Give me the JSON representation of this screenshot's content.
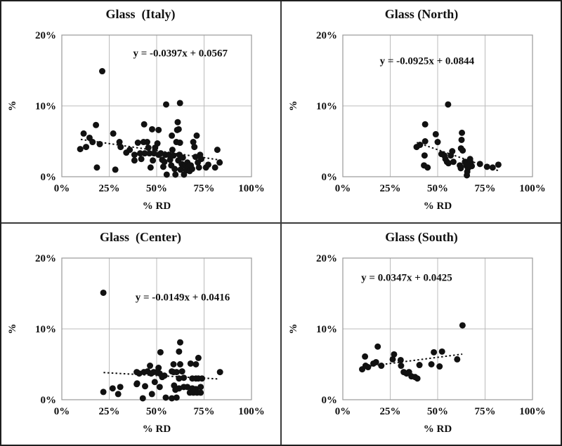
{
  "figure": {
    "background": "#ffffff",
    "border_color": "#1f1f1f",
    "divider_color": "#3a3a3a",
    "grid_color": "#bbbbbb",
    "plot_border_color": "#999999",
    "point_color": "#111111",
    "trend_color": "#111111"
  },
  "axes": {
    "x_label": "% RD",
    "y_label": "%",
    "x_ticks": [
      "0%",
      "25%",
      "50%",
      "75%",
      "100%"
    ],
    "x_tick_values": [
      0,
      25,
      50,
      75,
      100
    ],
    "y_ticks": [
      "0%",
      "10%",
      "20%"
    ],
    "y_tick_values": [
      0,
      10,
      20
    ],
    "x_range": [
      0,
      100
    ],
    "y_range": [
      0,
      20
    ],
    "grid": true
  },
  "chart_data": [
    {
      "type": "scatter",
      "title": "Glass  (Italy)",
      "equation": "y = -0.0397x + 0.0567",
      "equation_pos": [
        62.5,
        17.0
      ],
      "trend": {
        "slope": -0.0397,
        "intercept": 5.67,
        "x_start": 10,
        "x_end": 84
      },
      "points": [
        [
          21.3,
          14.9
        ],
        [
          55,
          10.2
        ],
        [
          62.3,
          10.4
        ],
        [
          18,
          7.3
        ],
        [
          43.4,
          7.4
        ],
        [
          47.6,
          6.7
        ],
        [
          51,
          6.6
        ],
        [
          61.1,
          7.7
        ],
        [
          61.6,
          6.7
        ],
        [
          11.5,
          6.1
        ],
        [
          14.6,
          5.5
        ],
        [
          27.1,
          6.1
        ],
        [
          16.2,
          4.9
        ],
        [
          12.8,
          4.2
        ],
        [
          9.7,
          3.9
        ],
        [
          20,
          4.6
        ],
        [
          30.4,
          4.9
        ],
        [
          31,
          4.2
        ],
        [
          34,
          3.4
        ],
        [
          35.8,
          3.8
        ],
        [
          38.3,
          3.1
        ],
        [
          38.3,
          2.3
        ],
        [
          40.1,
          4.8
        ],
        [
          41.3,
          3.3
        ],
        [
          41.9,
          2.5
        ],
        [
          43.1,
          4.9
        ],
        [
          43.7,
          3.3
        ],
        [
          45,
          4.9
        ],
        [
          45.6,
          4.1
        ],
        [
          46.2,
          3.3
        ],
        [
          46.8,
          1.3
        ],
        [
          48,
          2.3
        ],
        [
          48.6,
          3.3
        ],
        [
          49.2,
          4.1
        ],
        [
          50.4,
          4.7
        ],
        [
          51,
          3.1
        ],
        [
          52.2,
          3.3
        ],
        [
          52.9,
          2.4
        ],
        [
          53.5,
          1.4
        ],
        [
          54.1,
          2.1
        ],
        [
          54.7,
          3.1
        ],
        [
          55.3,
          0.3
        ],
        [
          56.5,
          3.1
        ],
        [
          57.1,
          2.4
        ],
        [
          57.7,
          1.6
        ],
        [
          58,
          5.8
        ],
        [
          58.3,
          3.8
        ],
        [
          58.9,
          3.0
        ],
        [
          59.5,
          1.1
        ],
        [
          59.9,
          0.3
        ],
        [
          60.4,
          4.9
        ],
        [
          60.8,
          6.6
        ],
        [
          61.4,
          2.3
        ],
        [
          62,
          3.1
        ],
        [
          62.3,
          4.8
        ],
        [
          62.6,
          1.0
        ],
        [
          63.2,
          1.8
        ],
        [
          63.8,
          2.7
        ],
        [
          64.4,
          0.3
        ],
        [
          65,
          1.5
        ],
        [
          65.6,
          0.9
        ],
        [
          66.2,
          2.0
        ],
        [
          66.8,
          1.4
        ],
        [
          67.4,
          0.8
        ],
        [
          68,
          1.6
        ],
        [
          68.7,
          1.1
        ],
        [
          69.3,
          4.9
        ],
        [
          69.9,
          4.2
        ],
        [
          70.5,
          2.8
        ],
        [
          71.1,
          5.8
        ],
        [
          71.7,
          2.0
        ],
        [
          72.3,
          1.3
        ],
        [
          72.9,
          3.1
        ],
        [
          73.5,
          2.5
        ],
        [
          76,
          1.3
        ],
        [
          77.2,
          1.7
        ],
        [
          80.8,
          1.3
        ],
        [
          82,
          3.8
        ],
        [
          83.2,
          2.0
        ],
        [
          18.5,
          1.3
        ],
        [
          28.2,
          1.0
        ]
      ]
    },
    {
      "type": "scatter",
      "title": "Glass (North)",
      "equation": "y = -0.0925x + 0.0844",
      "equation_pos": [
        44.4,
        15.9
      ],
      "trend": {
        "slope": -0.0925,
        "intercept": 8.44,
        "x_start": 39,
        "x_end": 82
      },
      "points": [
        [
          55.5,
          10.2
        ],
        [
          43.4,
          7.4
        ],
        [
          49,
          6.0
        ],
        [
          43.4,
          5.0
        ],
        [
          50,
          4.9
        ],
        [
          38.9,
          4.2
        ],
        [
          40.7,
          4.5
        ],
        [
          43.1,
          3.0
        ],
        [
          52,
          3.2
        ],
        [
          53.5,
          3.0
        ],
        [
          54.1,
          2.5
        ],
        [
          54.9,
          2.1
        ],
        [
          55.7,
          1.9
        ],
        [
          56.9,
          3.0
        ],
        [
          57.7,
          3.6
        ],
        [
          58.3,
          2.1
        ],
        [
          62.3,
          4.0
        ],
        [
          62.8,
          6.2
        ],
        [
          62.6,
          5.2
        ],
        [
          63.2,
          3.7
        ],
        [
          61.7,
          1.6
        ],
        [
          62.2,
          1.2
        ],
        [
          64.4,
          2.1
        ],
        [
          65,
          1.6
        ],
        [
          65.4,
          0.2
        ],
        [
          65.6,
          0.7
        ],
        [
          66,
          1.2
        ],
        [
          66.5,
          1.7
        ],
        [
          67.1,
          2.5
        ],
        [
          67.4,
          2.0
        ],
        [
          68,
          1.5
        ],
        [
          42.8,
          1.6
        ],
        [
          44.7,
          1.3
        ],
        [
          72.3,
          1.8
        ],
        [
          76,
          1.4
        ],
        [
          79,
          1.3
        ],
        [
          82,
          1.7
        ]
      ]
    },
    {
      "type": "scatter",
      "title": "Glass  (Center)",
      "equation": "y = -0.0149x + 0.0416",
      "equation_pos": [
        63.7,
        14.0
      ],
      "trend": {
        "slope": -0.0149,
        "intercept": 4.16,
        "x_start": 22,
        "x_end": 83
      },
      "points": [
        [
          21.9,
          15.1
        ],
        [
          62.4,
          8.1
        ],
        [
          61.8,
          6.8
        ],
        [
          52,
          6.7
        ],
        [
          72,
          5.9
        ],
        [
          70.7,
          5.0
        ],
        [
          58.9,
          5.0
        ],
        [
          62.4,
          5.0
        ],
        [
          67.9,
          5.1
        ],
        [
          51,
          4.5
        ],
        [
          39.5,
          3.9
        ],
        [
          40.8,
          3.7
        ],
        [
          43.3,
          3.9
        ],
        [
          45.2,
          4.0
        ],
        [
          46.5,
          4.8
        ],
        [
          47.1,
          3.7
        ],
        [
          48.4,
          3.9
        ],
        [
          50,
          3.9
        ],
        [
          51.6,
          3.7
        ],
        [
          52.9,
          3.2
        ],
        [
          54.1,
          3.4
        ],
        [
          58,
          4.0
        ],
        [
          58.9,
          3.9
        ],
        [
          60.5,
          3.9
        ],
        [
          61.8,
          3.0
        ],
        [
          63.4,
          4.0
        ],
        [
          64.3,
          3.1
        ],
        [
          68.8,
          3.0
        ],
        [
          70.7,
          3.0
        ],
        [
          72,
          3.0
        ],
        [
          73.9,
          3.0
        ],
        [
          83.4,
          3.9
        ],
        [
          39.7,
          2.3
        ],
        [
          49,
          2.5
        ],
        [
          43.9,
          1.9
        ],
        [
          39.5,
          2.2
        ],
        [
          30.8,
          1.8
        ],
        [
          29.7,
          0.8
        ],
        [
          21.9,
          1.1
        ],
        [
          26.8,
          1.6
        ],
        [
          47.5,
          0.8
        ],
        [
          51.6,
          1.8
        ],
        [
          59.2,
          2.0
        ],
        [
          59.9,
          1.4
        ],
        [
          61.8,
          1.6
        ],
        [
          64.3,
          1.8
        ],
        [
          66.2,
          1.8
        ],
        [
          68.8,
          1.6
        ],
        [
          70.7,
          1.5
        ],
        [
          73.2,
          1.8
        ],
        [
          67.5,
          1.0
        ],
        [
          69.4,
          1.0
        ],
        [
          71.3,
          1.0
        ],
        [
          73.2,
          1.0
        ],
        [
          58,
          0.2
        ],
        [
          60.5,
          0.3
        ],
        [
          54.8,
          0.3
        ],
        [
          42.7,
          0.2
        ]
      ]
    },
    {
      "type": "scatter",
      "title": "Glass (South)",
      "equation": "y = 0.0347x + 0.0425",
      "equation_pos": [
        33.7,
        16.8
      ],
      "trend": {
        "slope": 0.0347,
        "intercept": 4.25,
        "x_start": 10,
        "x_end": 63
      },
      "points": [
        [
          63.1,
          10.5
        ],
        [
          18.4,
          7.5
        ],
        [
          48,
          6.7
        ],
        [
          52.3,
          6.8
        ],
        [
          27,
          6.4
        ],
        [
          11.7,
          6.1
        ],
        [
          60.3,
          5.7
        ],
        [
          17.5,
          5.3
        ],
        [
          12,
          4.8
        ],
        [
          16.1,
          5.1
        ],
        [
          20.3,
          4.8
        ],
        [
          26.3,
          5.7
        ],
        [
          30.5,
          5.6
        ],
        [
          30.7,
          4.8
        ],
        [
          40.4,
          4.9
        ],
        [
          46.7,
          5.0
        ],
        [
          51,
          4.7
        ],
        [
          10.2,
          4.3
        ],
        [
          13.3,
          4.6
        ],
        [
          32.1,
          3.9
        ],
        [
          33.6,
          3.7
        ],
        [
          34.9,
          3.9
        ],
        [
          36.2,
          3.3
        ],
        [
          38.1,
          3.2
        ],
        [
          39.3,
          3.0
        ]
      ]
    }
  ]
}
